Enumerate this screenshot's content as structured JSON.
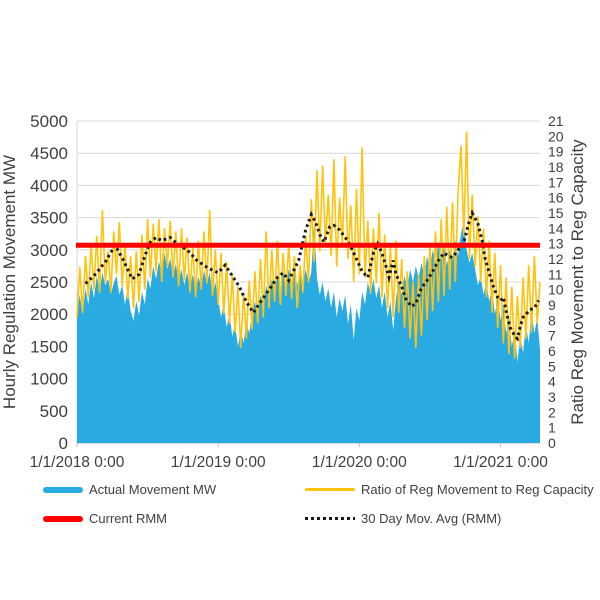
{
  "chart_data": {
    "type": "area",
    "title": "",
    "x_axis": {
      "t0": 0,
      "dt": 0.02,
      "t_max": 3.28,
      "ticks": [
        {
          "t": 0,
          "label": "1/1/2018 0:00"
        },
        {
          "t": 1,
          "label": "1/1/2019 0:00"
        },
        {
          "t": 2,
          "label": "1/1/2020 0:00"
        },
        {
          "t": 3,
          "label": "1/1/2021 0:00"
        }
      ]
    },
    "left_axis": {
      "title": "Hourly Regulation Movement MW",
      "min": 0,
      "max": 5000,
      "step": 500
    },
    "right_axis": {
      "title": "Ratio Reg Movement to Reg Capacity",
      "min": 0,
      "max": 21,
      "step": 1
    },
    "grid_color": "#D9D9D9",
    "axis_line_color": "#BFBFBF",
    "text_color": "#3F3F3F",
    "series": [
      {
        "name": "Actual Movement MW",
        "type": "area",
        "axis": "left",
        "color": "#29ABE2",
        "values": [
          2050,
          2300,
          2000,
          2400,
          2150,
          2500,
          2250,
          2600,
          2350,
          2650,
          2450,
          2550,
          2320,
          2480,
          2600,
          2300,
          2450,
          2150,
          2400,
          2050,
          1900,
          2200,
          1980,
          2350,
          2150,
          2550,
          2400,
          2750,
          2550,
          2820,
          2650,
          2950,
          2700,
          2870,
          2600,
          2780,
          2520,
          2700,
          2450,
          2650,
          2400,
          2620,
          2350,
          2580,
          2420,
          2680,
          2480,
          2650,
          2300,
          2500,
          2250,
          1950,
          2150,
          1800,
          2000,
          1650,
          1850,
          1500,
          1750,
          1550,
          1900,
          1700,
          2000,
          2200,
          1950,
          2300,
          2100,
          2450,
          2250,
          2550,
          2350,
          2600,
          2400,
          2650,
          2480,
          2700,
          2500,
          2680,
          2450,
          2620,
          2500,
          2700,
          2480,
          2650,
          3400,
          2550,
          2300,
          2500,
          2200,
          2400,
          2100,
          2350,
          1950,
          2250,
          2050,
          2300,
          1850,
          2150,
          1600,
          2100,
          1900,
          2350,
          2150,
          2500,
          2300,
          2550,
          2250,
          2450,
          2100,
          2350,
          1950,
          2200,
          1750,
          2250,
          2500,
          2300,
          2600,
          2400,
          2700,
          2500,
          2750,
          2550,
          2800,
          2600,
          2900,
          2700,
          3000,
          2800,
          3100,
          2850,
          3050,
          2750,
          3000,
          2850,
          3150,
          2900,
          3250,
          3450,
          3000,
          2800,
          2950,
          2700,
          2450,
          2600,
          2300,
          2500,
          2200,
          2400,
          2000,
          2250,
          1900,
          2150,
          1700,
          1950,
          1500,
          1750,
          1250,
          1650,
          1400,
          1850,
          1550,
          2050,
          1700,
          1950,
          1450
        ]
      },
      {
        "name": "Ratio of Reg Movement to Reg Capacity",
        "type": "line",
        "axis": "right",
        "color": "#FFC20E",
        "values": [
          8.2,
          11.5,
          8.5,
          12.2,
          9.5,
          12.9,
          10.0,
          13.5,
          9.8,
          15.2,
          10.5,
          12.5,
          9.8,
          13.8,
          11.0,
          14.4,
          10.2,
          13.0,
          9.4,
          12.2,
          8.8,
          12.5,
          9.2,
          13.6,
          10.0,
          14.6,
          10.8,
          14.3,
          11.2,
          14.6,
          10.5,
          14.0,
          11.5,
          14.5,
          10.8,
          13.8,
          10.2,
          14.0,
          10.6,
          13.4,
          9.8,
          12.8,
          9.5,
          13.2,
          10.0,
          13.8,
          10.4,
          15.2,
          9.6,
          12.6,
          9.0,
          12.4,
          8.4,
          11.8,
          7.8,
          11.0,
          7.2,
          10.2,
          6.2,
          9.8,
          6.8,
          10.6,
          7.4,
          11.2,
          7.8,
          12.0,
          8.2,
          13.8,
          8.8,
          12.6,
          9.2,
          13.2,
          9.0,
          12.4,
          9.6,
          13.0,
          9.4,
          12.2,
          8.8,
          11.6,
          9.8,
          13.5,
          10.5,
          15.9,
          11.8,
          17.8,
          12.5,
          18.1,
          13.0,
          16.2,
          12.2,
          18.5,
          11.5,
          16.0,
          12.8,
          18.7,
          12.0,
          15.5,
          10.5,
          16.6,
          11.0,
          19.3,
          10.8,
          14.5,
          9.8,
          14.0,
          10.4,
          15.0,
          9.5,
          13.6,
          8.8,
          12.8,
          8.2,
          13.2,
          8.5,
          12.0,
          7.5,
          11.2,
          6.8,
          10.5,
          6.2,
          11.0,
          7.0,
          12.2,
          8.0,
          13.0,
          8.6,
          13.8,
          9.2,
          14.6,
          9.6,
          15.4,
          10.0,
          15.7,
          10.5,
          16.4,
          19.4,
          13.5,
          20.3,
          12.0,
          16.2,
          11.5,
          14.8,
          10.5,
          14.0,
          9.5,
          13.2,
          8.5,
          12.4,
          7.5,
          11.6,
          6.5,
          10.8,
          5.8,
          10.2,
          5.5,
          9.6,
          6.2,
          10.8,
          6.8,
          11.6,
          7.2,
          12.2,
          7.8,
          10.5
        ]
      },
      {
        "name": "30 Day Mov. Avg (RMM)",
        "type": "dotted-line",
        "axis": "right",
        "color": "#1A1A1A",
        "points": [
          [
            0.06,
            10.4
          ],
          [
            0.12,
            10.9
          ],
          [
            0.2,
            11.8
          ],
          [
            0.27,
            12.9
          ],
          [
            0.33,
            11.9
          ],
          [
            0.39,
            10.7
          ],
          [
            0.44,
            11.0
          ],
          [
            0.48,
            12.2
          ],
          [
            0.52,
            13.1
          ],
          [
            0.56,
            13.4
          ],
          [
            0.6,
            13.2
          ],
          [
            0.66,
            13.4
          ],
          [
            0.72,
            12.9
          ],
          [
            0.78,
            12.6
          ],
          [
            0.85,
            11.9
          ],
          [
            0.93,
            11.4
          ],
          [
            1.0,
            11.1
          ],
          [
            1.05,
            11.6
          ],
          [
            1.1,
            10.9
          ],
          [
            1.15,
            10.2
          ],
          [
            1.2,
            9.2
          ],
          [
            1.25,
            8.5
          ],
          [
            1.3,
            9.2
          ],
          [
            1.36,
            10.0
          ],
          [
            1.42,
            10.8
          ],
          [
            1.46,
            11.1
          ],
          [
            1.5,
            10.6
          ],
          [
            1.57,
            11.9
          ],
          [
            1.62,
            13.9
          ],
          [
            1.66,
            14.9
          ],
          [
            1.69,
            14.4
          ],
          [
            1.72,
            13.6
          ],
          [
            1.75,
            13.1
          ],
          [
            1.79,
            14.1
          ],
          [
            1.82,
            14.2
          ],
          [
            1.86,
            13.9
          ],
          [
            1.9,
            13.4
          ],
          [
            1.93,
            13.0
          ],
          [
            1.97,
            12.2
          ],
          [
            2.02,
            11.2
          ],
          [
            2.06,
            10.8
          ],
          [
            2.1,
            12.4
          ],
          [
            2.13,
            13.0
          ],
          [
            2.16,
            12.4
          ],
          [
            2.19,
            11.5
          ],
          [
            2.21,
            10.8
          ],
          [
            2.24,
            11.9
          ],
          [
            2.26,
            11.0
          ],
          [
            2.3,
            10.2
          ],
          [
            2.33,
            9.4
          ],
          [
            2.37,
            8.9
          ],
          [
            2.4,
            9.1
          ],
          [
            2.44,
            10.1
          ],
          [
            2.48,
            10.6
          ],
          [
            2.52,
            11.2
          ],
          [
            2.56,
            11.9
          ],
          [
            2.6,
            12.4
          ],
          [
            2.63,
            12.2
          ],
          [
            2.66,
            12.1
          ],
          [
            2.7,
            12.6
          ],
          [
            2.73,
            12.9
          ],
          [
            2.75,
            13.4
          ],
          [
            2.77,
            14.2
          ],
          [
            2.8,
            15.0
          ],
          [
            2.84,
            14.3
          ],
          [
            2.87,
            13.2
          ],
          [
            2.89,
            12.1
          ],
          [
            2.92,
            11.1
          ],
          [
            2.95,
            10.2
          ],
          [
            2.98,
            9.5
          ],
          [
            3.0,
            9.3
          ],
          [
            3.02,
            9.5
          ],
          [
            3.05,
            8.2
          ],
          [
            3.07,
            7.5
          ],
          [
            3.1,
            7.0
          ],
          [
            3.12,
            6.8
          ],
          [
            3.14,
            7.6
          ],
          [
            3.16,
            8.2
          ],
          [
            3.19,
            8.5
          ],
          [
            3.21,
            8.7
          ],
          [
            3.24,
            8.8
          ],
          [
            3.27,
            9.3
          ]
        ]
      },
      {
        "name": "Current RMM",
        "type": "hline",
        "axis": "right",
        "color": "#FF0000",
        "value": 12.9
      }
    ],
    "legend": [
      {
        "label": "Actual Movement MW",
        "color": "#29ABE2",
        "style": "area"
      },
      {
        "label": "Ratio of Reg Movement to Reg Capacity",
        "color": "#FFC20E",
        "style": "line"
      },
      {
        "label": "Current RMM",
        "color": "#FF0000",
        "style": "thick"
      },
      {
        "label": "30 Day Mov. Avg (RMM)",
        "color": "#1A1A1A",
        "style": "dotted"
      }
    ]
  }
}
